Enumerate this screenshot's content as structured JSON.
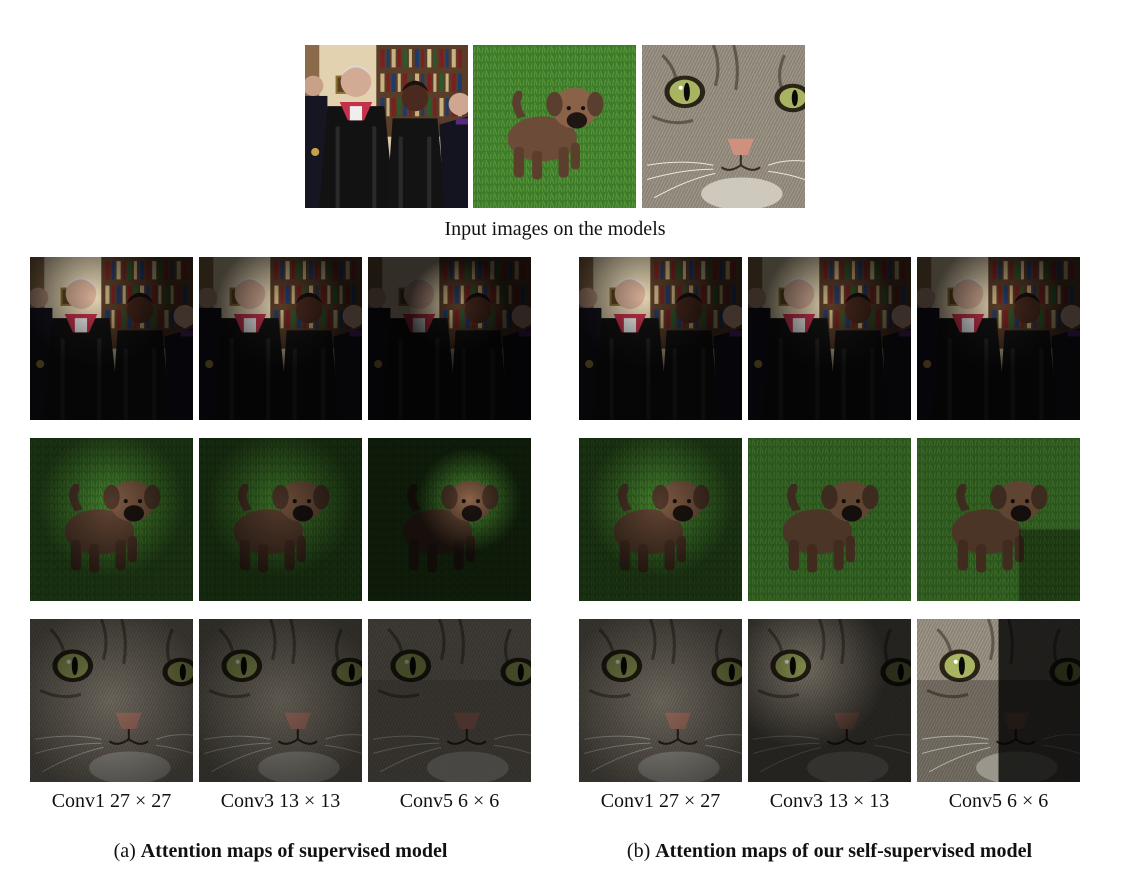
{
  "input_row": {
    "caption": "Input images on the models",
    "images": [
      "people",
      "puppy",
      "cat"
    ]
  },
  "columns": {
    "supervised": [
      "Conv1 27 × 27",
      "Conv3 13 × 13",
      "Conv5 6 × 6"
    ],
    "self_supervised": [
      "Conv1 27 × 27",
      "Conv3 13 × 13",
      "Conv5 6 × 6"
    ]
  },
  "subcaptions": {
    "a_prefix": "(a)",
    "a_title": "Attention maps of supervised model",
    "b_prefix": "(b)",
    "b_title": "Attention maps of our self-supervised model"
  },
  "colors": {
    "grass": "#3f7a2a",
    "robe": "#151515",
    "hood": "#c3314a",
    "cat_fur": "#8a8275",
    "dog_fur": "#7a5c45",
    "shelf": "#6a4a32"
  }
}
